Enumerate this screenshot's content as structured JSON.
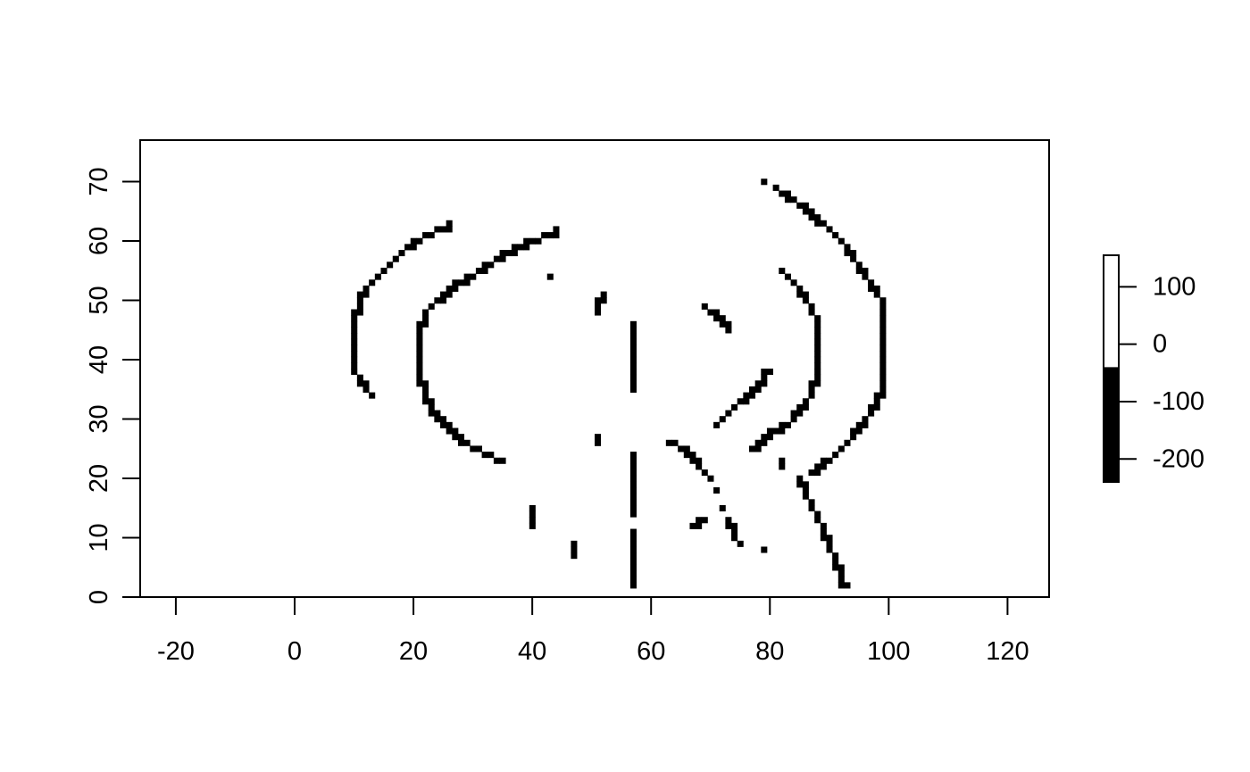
{
  "chart_data": {
    "type": "heatmap",
    "title": "",
    "xlabel": "",
    "ylabel": "",
    "xlim": [
      -26,
      127
    ],
    "ylim": [
      0,
      77
    ],
    "x_ticks": [
      -20,
      0,
      20,
      40,
      60,
      80,
      100,
      120
    ],
    "x_tick_labels": [
      "-20",
      "0",
      "20",
      "40",
      "60",
      "80",
      "100",
      "120"
    ],
    "y_ticks": [
      0,
      10,
      20,
      30,
      40,
      50,
      60,
      70
    ],
    "y_tick_labels": [
      "0",
      "10",
      "20",
      "30",
      "40",
      "50",
      "60",
      "70"
    ],
    "grid": false,
    "cell_value": -200,
    "background_value": 0,
    "colors": {
      "cell": "#000000",
      "background": "#ffffff",
      "frame": "#000000"
    },
    "legend": {
      "position": "right",
      "range": [
        -240,
        155
      ],
      "ticks": [
        100,
        0,
        -100,
        -200
      ],
      "tick_labels": [
        "100",
        "0",
        "-100",
        "-200"
      ],
      "breakpoint": -40,
      "colors_low_high": [
        "#000000",
        "#ffffff"
      ]
    },
    "segments": [
      {
        "name": "outer-left-arc",
        "points": [
          [
            12.5,
            34
          ],
          [
            10,
            38
          ],
          [
            9.5,
            43
          ],
          [
            10,
            46
          ],
          [
            11,
            50
          ],
          [
            13,
            53
          ],
          [
            16,
            56
          ],
          [
            19,
            59
          ],
          [
            22,
            61
          ],
          [
            26,
            62.5
          ]
        ]
      },
      {
        "name": "inner-left-arc",
        "points": [
          [
            35,
            22.5
          ],
          [
            31,
            24.5
          ],
          [
            27,
            27
          ],
          [
            24,
            30
          ],
          [
            22,
            33.5
          ],
          [
            21,
            38
          ],
          [
            21,
            44
          ],
          [
            22,
            47.5
          ],
          [
            24,
            50
          ],
          [
            27,
            52.5
          ],
          [
            31,
            55
          ],
          [
            35,
            57.5
          ],
          [
            40,
            60
          ],
          [
            44,
            61.5
          ]
        ]
      },
      {
        "name": "center-vertical-top",
        "points": [
          [
            56.5,
            34.5
          ],
          [
            56.5,
            45.5
          ]
        ]
      },
      {
        "name": "center-vertical-mid",
        "points": [
          [
            56.5,
            13.5
          ],
          [
            56.5,
            23.5
          ]
        ]
      },
      {
        "name": "center-vertical-bottom",
        "points": [
          [
            56.5,
            1.5
          ],
          [
            56.5,
            10.5
          ]
        ]
      },
      {
        "name": "middle-left-dash-upper",
        "points": [
          [
            50.5,
            48
          ],
          [
            52,
            50.5
          ]
        ]
      },
      {
        "name": "middle-left-dash-lower",
        "points": [
          [
            50.5,
            25.5
          ],
          [
            51,
            27
          ]
        ]
      },
      {
        "name": "dot-42-53",
        "points": [
          [
            42.5,
            53.5
          ],
          [
            43,
            53.5
          ]
        ]
      },
      {
        "name": "block-40-13",
        "points": [
          [
            40,
            11.5
          ],
          [
            40,
            14.5
          ]
        ]
      },
      {
        "name": "block-47-7",
        "points": [
          [
            47,
            6.5
          ],
          [
            47,
            8.5
          ]
        ]
      },
      {
        "name": "upper-right-dash",
        "points": [
          [
            69,
            48.5
          ],
          [
            71,
            47.5
          ],
          [
            73,
            45
          ]
        ]
      },
      {
        "name": "diagonal-up",
        "points": [
          [
            71,
            28.5
          ],
          [
            73,
            31
          ],
          [
            75,
            33
          ],
          [
            77,
            34
          ],
          [
            79,
            36.5
          ],
          [
            79.5,
            38
          ]
        ]
      },
      {
        "name": "diagonal-down",
        "points": [
          [
            63,
            26
          ],
          [
            66,
            24.5
          ],
          [
            68,
            22
          ],
          [
            69.5,
            20
          ]
        ]
      },
      {
        "name": "dot-70-17",
        "points": [
          [
            70.5,
            17.5
          ],
          [
            70.5,
            17.5
          ]
        ]
      },
      {
        "name": "small-hook",
        "points": [
          [
            66.5,
            11.5
          ],
          [
            68,
            12
          ],
          [
            68.5,
            13
          ]
        ]
      },
      {
        "name": "dot-72-15",
        "points": [
          [
            72,
            14.5
          ],
          [
            72,
            14.5
          ]
        ]
      },
      {
        "name": "short-diagonal",
        "points": [
          [
            73,
            13
          ],
          [
            74,
            10
          ],
          [
            75,
            8.5
          ]
        ]
      },
      {
        "name": "dot-78-7",
        "points": [
          [
            78.5,
            7.5
          ],
          [
            78.5,
            7.5
          ]
        ]
      },
      {
        "name": "dot-79-69",
        "points": [
          [
            79,
            69.5
          ],
          [
            79,
            69.5
          ]
        ]
      },
      {
        "name": "outer-right-arc",
        "points": [
          [
            81,
            68.5
          ],
          [
            85,
            66
          ],
          [
            89,
            62.5
          ],
          [
            93,
            58.5
          ],
          [
            96,
            54
          ],
          [
            98.5,
            50
          ],
          [
            99,
            45
          ],
          [
            99,
            40
          ],
          [
            99,
            35
          ],
          [
            97,
            31
          ],
          [
            94,
            27
          ],
          [
            91,
            24
          ],
          [
            87,
            21
          ]
        ]
      },
      {
        "name": "lower-right-diagonal",
        "points": [
          [
            85,
            20
          ],
          [
            87,
            15
          ],
          [
            89,
            11
          ],
          [
            91,
            6
          ],
          [
            92.5,
            1.5
          ]
        ]
      },
      {
        "name": "inner-right-arc",
        "points": [
          [
            77,
            25
          ],
          [
            80,
            27.5
          ],
          [
            84,
            30
          ],
          [
            87,
            34
          ],
          [
            88,
            38
          ],
          [
            88,
            42
          ],
          [
            88,
            46
          ],
          [
            86,
            50
          ],
          [
            84,
            53
          ],
          [
            82,
            54.5
          ]
        ]
      },
      {
        "name": "tick-82-22",
        "points": [
          [
            81.5,
            23
          ],
          [
            82,
            22
          ]
        ]
      }
    ]
  }
}
